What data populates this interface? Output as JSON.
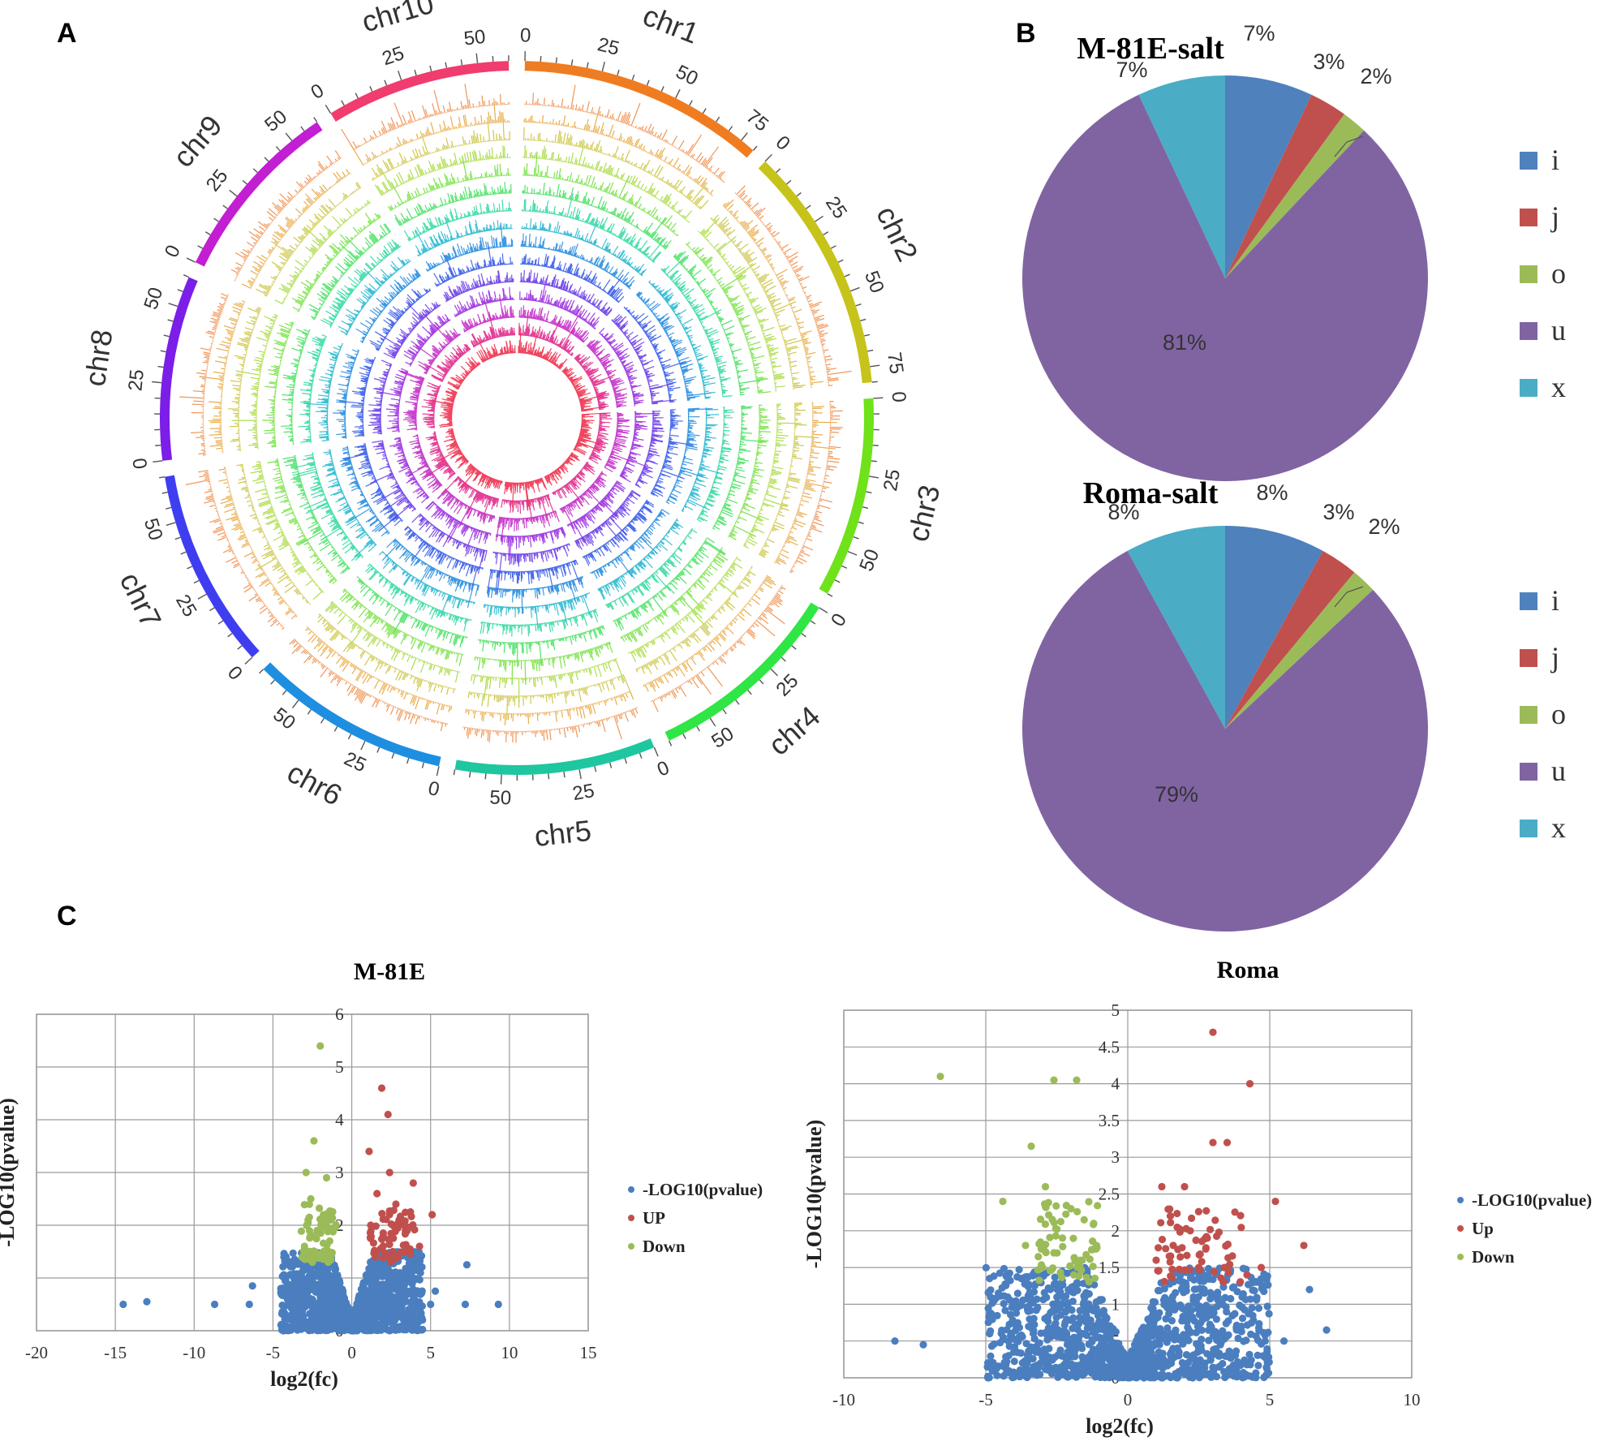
{
  "panels": {
    "a": "A",
    "b": "B",
    "c": "C"
  },
  "colors": {
    "i": "#4f81bd",
    "j": "#c0504d",
    "o": "#9bbb59",
    "u": "#8064a2",
    "x": "#4bacc6",
    "scatter_all": "#4a7ebf",
    "scatter_up": "#c0504d",
    "scatter_down": "#9bbb59"
  },
  "chart_data": [
    {
      "type": "circos",
      "chromosomes": [
        {
          "name": "chr1",
          "length": 80,
          "ticks": [
            "0",
            "25",
            "50",
            "75"
          ],
          "color": "#f07c21"
        },
        {
          "name": "chr2",
          "length": 80,
          "ticks": [
            "0",
            "25",
            "50",
            "75"
          ],
          "color": "#c6c31a"
        },
        {
          "name": "chr3",
          "length": 65,
          "ticks": [
            "0",
            "25",
            "50"
          ],
          "color": "#6fe21a"
        },
        {
          "name": "chr4",
          "length": 65,
          "ticks": [
            "0",
            "25",
            "50"
          ],
          "color": "#2fe645"
        },
        {
          "name": "chr5",
          "length": 65,
          "ticks": [
            "0",
            "25",
            "50"
          ],
          "color": "#1ec7a0"
        },
        {
          "name": "chr6",
          "length": 65,
          "ticks": [
            "0",
            "25",
            "50"
          ],
          "color": "#1e8fe0"
        },
        {
          "name": "chr7",
          "length": 65,
          "ticks": [
            "0",
            "25",
            "50"
          ],
          "color": "#3e3ef0"
        },
        {
          "name": "chr8",
          "length": 60,
          "ticks": [
            "0",
            "25",
            "50"
          ],
          "color": "#7b1ee8"
        },
        {
          "name": "chr9",
          "length": 60,
          "ticks": [
            "0",
            "25",
            "50"
          ],
          "color": "#c21ed2"
        },
        {
          "name": "chr10",
          "length": 60,
          "ticks": [
            "0",
            "25",
            "50"
          ],
          "color": "#f03c6e"
        }
      ],
      "tracks": 15,
      "track_colors": [
        "#f08a44",
        "#e8a43a",
        "#c9c23a",
        "#a6d93a",
        "#6fe03a",
        "#3ee05a",
        "#2ed8a0",
        "#2ab8d0",
        "#2a8ee0",
        "#3a5ee8",
        "#6a3ee8",
        "#9a2ee0",
        "#c22ec8",
        "#e02e8e",
        "#f0304e"
      ]
    },
    {
      "type": "pie",
      "title": "M-81E-salt",
      "labels": [
        "i",
        "j",
        "o",
        "u",
        "x"
      ],
      "values": [
        7,
        3,
        2,
        81,
        7
      ],
      "value_labels": [
        "7%",
        "3%",
        "2%",
        "81%",
        "7%"
      ]
    },
    {
      "type": "pie",
      "title": "Roma-salt",
      "labels": [
        "i",
        "j",
        "o",
        "u",
        "x"
      ],
      "values": [
        8,
        3,
        2,
        79,
        8
      ],
      "value_labels": [
        "8%",
        "3%",
        "2%",
        "79%",
        "8%"
      ]
    },
    {
      "type": "scatter",
      "title": "M-81E",
      "xlabel": "log2(fc)",
      "ylabel": "-LOG10(pvalue)",
      "xlim": [
        -20,
        15
      ],
      "ylim": [
        0,
        6
      ],
      "xticks": [
        "-20",
        "-15",
        "-10",
        "-5",
        "0",
        "5",
        "10",
        "15"
      ],
      "yticks": [
        "0",
        "1",
        "2",
        "3",
        "4",
        "5",
        "6"
      ],
      "legend": [
        "-LOG10(pvalue)",
        "UP",
        "Down"
      ],
      "highlight": {
        "up": [
          [
            1.9,
            4.6
          ],
          [
            2.3,
            4.1
          ],
          [
            1.1,
            3.4
          ],
          [
            2.4,
            3.0
          ],
          [
            3.9,
            2.8
          ],
          [
            5.1,
            2.2
          ],
          [
            1.6,
            2.6
          ],
          [
            2.8,
            2.4
          ],
          [
            3.4,
            1.9
          ],
          [
            4.3,
            1.6
          ],
          [
            1.2,
            2.0
          ],
          [
            2.0,
            1.8
          ],
          [
            2.6,
            1.5
          ],
          [
            3.0,
            2.1
          ],
          [
            1.5,
            1.4
          ]
        ],
        "down": [
          [
            -2.0,
            5.4
          ],
          [
            -2.4,
            3.6
          ],
          [
            -2.9,
            3.0
          ],
          [
            -1.6,
            2.9
          ],
          [
            -2.6,
            2.5
          ],
          [
            -1.8,
            2.2
          ],
          [
            -2.2,
            1.9
          ],
          [
            -1.4,
            1.7
          ],
          [
            -3.0,
            1.6
          ],
          [
            -1.9,
            1.4
          ],
          [
            -2.5,
            1.3
          ],
          [
            -1.5,
            1.3
          ]
        ],
        "outliers": [
          [
            -14.5,
            0.5
          ],
          [
            -13,
            0.55
          ],
          [
            -8.7,
            0.5
          ],
          [
            -6.5,
            0.5
          ],
          [
            -6.3,
            0.85
          ],
          [
            -4.5,
            0.8
          ],
          [
            7.3,
            1.25
          ],
          [
            9.3,
            0.5
          ],
          [
            7.2,
            0.5
          ],
          [
            5.3,
            0.75
          ],
          [
            5.0,
            0.5
          ]
        ]
      }
    },
    {
      "type": "scatter",
      "title": "Roma",
      "xlabel": "log2(fc)",
      "ylabel": "-LOG10(pvalue)",
      "xlim": [
        -10,
        10
      ],
      "ylim": [
        0,
        5
      ],
      "xticks": [
        "-10",
        "-5",
        "0",
        "5",
        "10"
      ],
      "yticks": [
        "0",
        "0.5",
        "1",
        "1.5",
        "2",
        "2.5",
        "3",
        "3.5",
        "4",
        "4.5",
        "5"
      ],
      "legend": [
        "-LOG10(pvalue)",
        "Up",
        "Down"
      ],
      "highlight": {
        "up": [
          [
            3.0,
            4.7
          ],
          [
            4.3,
            4.0
          ],
          [
            3.0,
            3.2
          ],
          [
            3.5,
            3.2
          ],
          [
            5.2,
            2.4
          ],
          [
            6.2,
            1.8
          ],
          [
            1.2,
            2.6
          ],
          [
            2.0,
            2.6
          ],
          [
            1.5,
            2.2
          ],
          [
            2.2,
            2.0
          ],
          [
            2.8,
            1.9
          ],
          [
            3.4,
            1.5
          ],
          [
            4.2,
            1.4
          ],
          [
            4.7,
            1.5
          ],
          [
            1.0,
            1.6
          ],
          [
            1.6,
            1.8
          ],
          [
            2.5,
            1.5
          ]
        ],
        "down": [
          [
            -6.6,
            4.1
          ],
          [
            -2.6,
            4.05
          ],
          [
            -1.8,
            4.05
          ],
          [
            -3.4,
            3.15
          ],
          [
            -4.4,
            2.4
          ],
          [
            -2.9,
            2.6
          ],
          [
            -2.0,
            2.3
          ],
          [
            -1.2,
            2.1
          ],
          [
            -3.6,
            1.8
          ],
          [
            -2.3,
            1.9
          ],
          [
            -1.6,
            1.6
          ],
          [
            -3.0,
            1.5
          ],
          [
            -1.9,
            1.4
          ],
          [
            -1.1,
            1.8
          ],
          [
            -2.6,
            1.7
          ]
        ],
        "outliers": [
          [
            -8.2,
            0.5
          ],
          [
            -7.2,
            0.45
          ],
          [
            6.4,
            1.2
          ],
          [
            7.0,
            0.65
          ],
          [
            5.5,
            0.5
          ]
        ]
      }
    }
  ]
}
